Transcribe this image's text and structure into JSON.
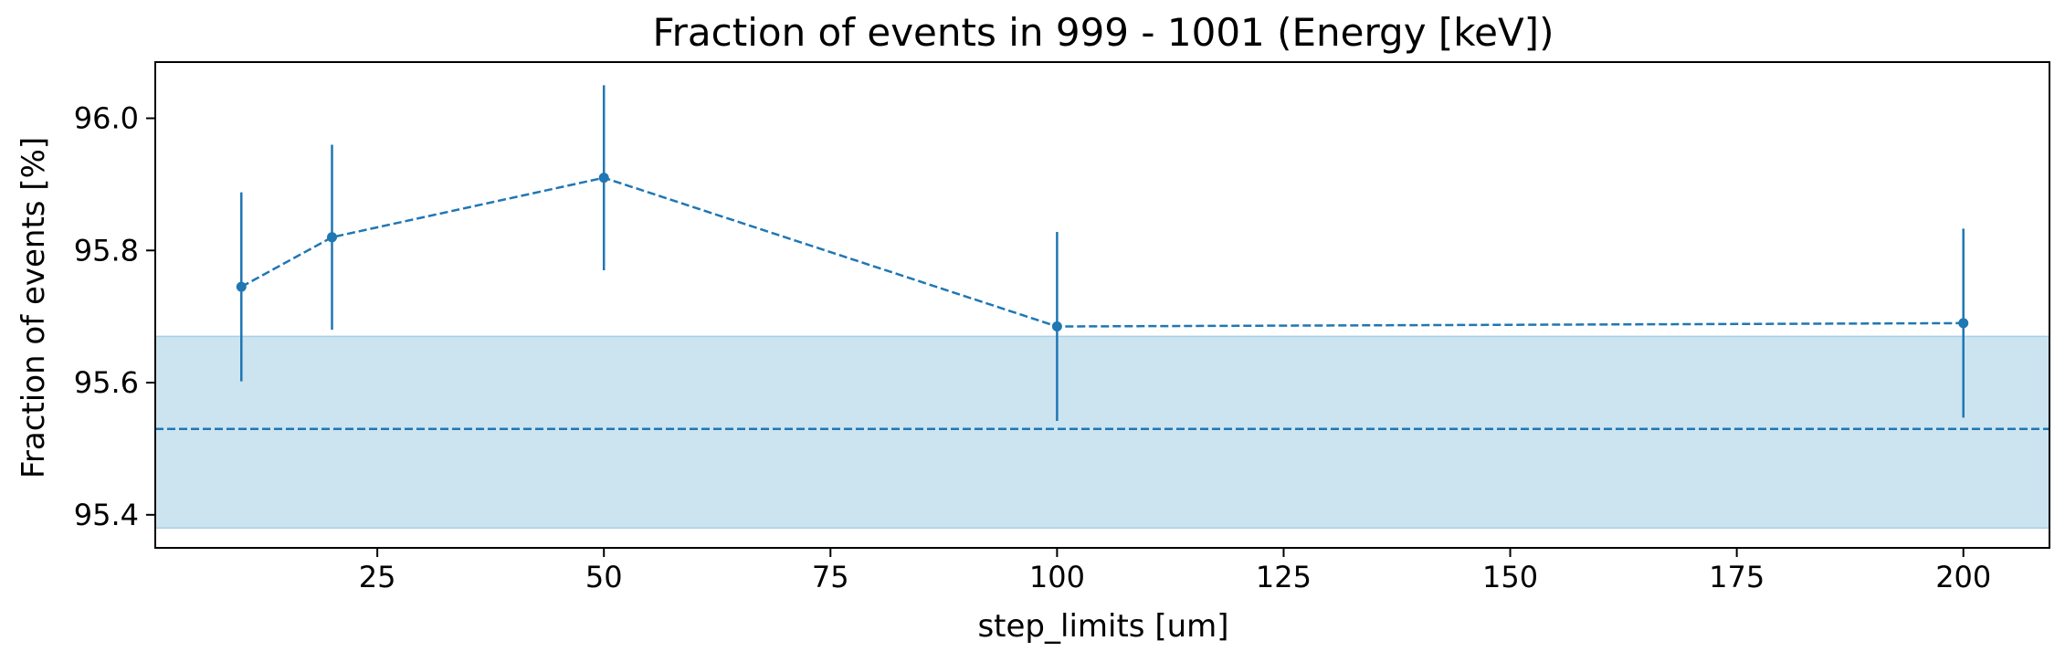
{
  "chart_data": {
    "type": "line",
    "title": "Fraction of events in 999 - 1001 (Energy [keV])",
    "xlabel": "step_limits [um]",
    "ylabel": "Fraction of events [%]",
    "xlim": [
      0.5,
      209.5
    ],
    "ylim": [
      95.35,
      96.085
    ],
    "xticks": [
      25,
      50,
      75,
      100,
      125,
      150,
      175,
      200
    ],
    "yticks": [
      95.4,
      95.6,
      95.8,
      96.0
    ],
    "xtick_labels": [
      "25",
      "50",
      "75",
      "100",
      "125",
      "150",
      "175",
      "200"
    ],
    "ytick_labels": [
      "95.4",
      "95.6",
      "95.8",
      "96.0"
    ],
    "grid": false,
    "series": [
      {
        "x": [
          10,
          20,
          50,
          100,
          200
        ],
        "y": [
          95.745,
          95.82,
          95.91,
          95.685,
          95.69
        ],
        "yerr": [
          0.143,
          0.14,
          0.14,
          0.143,
          0.143
        ],
        "color": "#1f77b4",
        "linestyle": "dashed",
        "marker": "circle"
      }
    ],
    "reference": {
      "y": 95.53,
      "band": [
        95.38,
        95.67
      ],
      "line_color": "#1f77b4",
      "band_color": "#cce3f0"
    }
  }
}
